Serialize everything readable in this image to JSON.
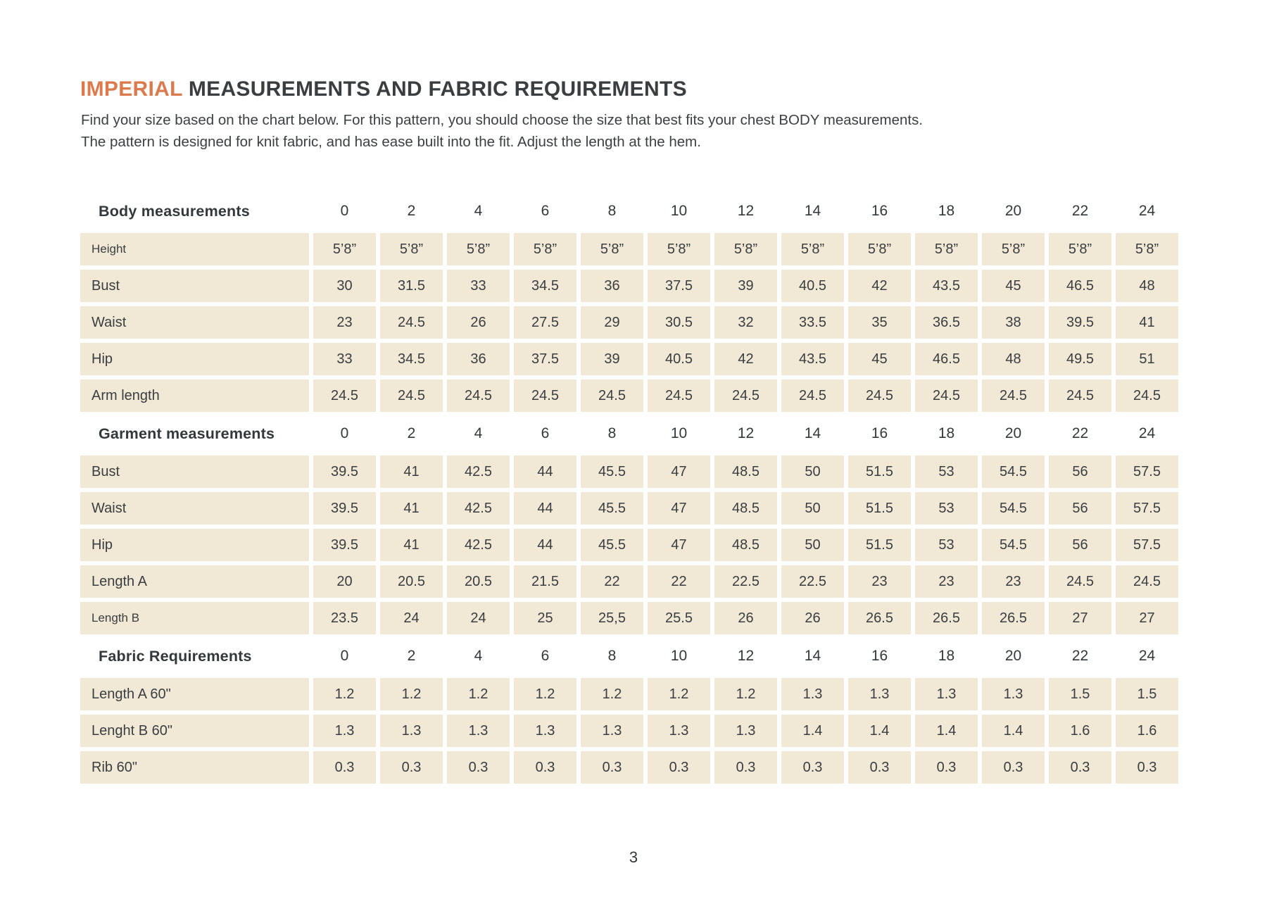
{
  "header": {
    "title_accent": "IMPERIAL",
    "title_rest": " MEASUREMENTS AND FABRIC REQUIREMENTS",
    "intro_line1": "Find your size based on the chart below. For this pattern, you should choose the size that best fits your chest BODY measurements.",
    "intro_line2": "The pattern is designed for knit fabric, and has ease built into the fit. Adjust the length at the hem."
  },
  "colors": {
    "accent": "#db7a4c",
    "text": "#3a3e41",
    "cell_background": "#f2e8d6"
  },
  "sizes": [
    "0",
    "2",
    "4",
    "6",
    "8",
    "10",
    "12",
    "14",
    "16",
    "18",
    "20",
    "22",
    "24"
  ],
  "sections": [
    {
      "header": "Body measurements",
      "rows": [
        {
          "label": "Height",
          "small": true,
          "values": [
            "5’8”",
            "5’8”",
            "5’8”",
            "5’8”",
            "5’8”",
            "5’8”",
            "5’8”",
            "5’8”",
            "5’8”",
            "5’8”",
            "5’8”",
            "5’8”",
            "5’8”"
          ]
        },
        {
          "label": "Bust",
          "small": false,
          "values": [
            "30",
            "31.5",
            "33",
            "34.5",
            "36",
            "37.5",
            "39",
            "40.5",
            "42",
            "43.5",
            "45",
            "46.5",
            "48"
          ]
        },
        {
          "label": "Waist",
          "small": false,
          "values": [
            "23",
            "24.5",
            "26",
            "27.5",
            "29",
            "30.5",
            "32",
            "33.5",
            "35",
            "36.5",
            "38",
            "39.5",
            "41"
          ]
        },
        {
          "label": "Hip",
          "small": false,
          "values": [
            "33",
            "34.5",
            "36",
            "37.5",
            "39",
            "40.5",
            "42",
            "43.5",
            "45",
            "46.5",
            "48",
            "49.5",
            "51"
          ]
        },
        {
          "label": "Arm length",
          "small": false,
          "values": [
            "24.5",
            "24.5",
            "24.5",
            "24.5",
            "24.5",
            "24.5",
            "24.5",
            "24.5",
            "24.5",
            "24.5",
            "24.5",
            "24.5",
            "24.5"
          ]
        }
      ]
    },
    {
      "header": "Garment measurements",
      "rows": [
        {
          "label": "Bust",
          "small": false,
          "values": [
            "39.5",
            "41",
            "42.5",
            "44",
            "45.5",
            "47",
            "48.5",
            "50",
            "51.5",
            "53",
            "54.5",
            "56",
            "57.5"
          ]
        },
        {
          "label": "Waist",
          "small": false,
          "values": [
            "39.5",
            "41",
            "42.5",
            "44",
            "45.5",
            "47",
            "48.5",
            "50",
            "51.5",
            "53",
            "54.5",
            "56",
            "57.5"
          ]
        },
        {
          "label": "Hip",
          "small": false,
          "values": [
            "39.5",
            "41",
            "42.5",
            "44",
            "45.5",
            "47",
            "48.5",
            "50",
            "51.5",
            "53",
            "54.5",
            "56",
            "57.5"
          ]
        },
        {
          "label": "Length A",
          "small": false,
          "values": [
            "20",
            "20.5",
            "20.5",
            "21.5",
            "22",
            "22",
            "22.5",
            "22.5",
            "23",
            "23",
            "23",
            "24.5",
            "24.5"
          ]
        },
        {
          "label": "Length B",
          "small": true,
          "values": [
            "23.5",
            "24",
            "24",
            "25",
            "25,5",
            "25.5",
            "26",
            "26",
            "26.5",
            "26.5",
            "26.5",
            "27",
            "27"
          ]
        }
      ]
    },
    {
      "header": "Fabric Requirements",
      "rows": [
        {
          "label": "Length A 60\"",
          "small": false,
          "values": [
            "1.2",
            "1.2",
            "1.2",
            "1.2",
            "1.2",
            "1.2",
            "1.2",
            "1.3",
            "1.3",
            "1.3",
            "1.3",
            "1.5",
            "1.5"
          ]
        },
        {
          "label": "Lenght B 60\"",
          "small": false,
          "values": [
            "1.3",
            "1.3",
            "1.3",
            "1.3",
            "1.3",
            "1.3",
            "1.3",
            "1.4",
            "1.4",
            "1.4",
            "1.4",
            "1.6",
            "1.6"
          ]
        },
        {
          "label": "Rib 60\"",
          "small": false,
          "values": [
            "0.3",
            "0.3",
            "0.3",
            "0.3",
            "0.3",
            "0.3",
            "0.3",
            "0.3",
            "0.3",
            "0.3",
            "0.3",
            "0.3",
            "0.3"
          ]
        }
      ]
    }
  ],
  "footer": {
    "page_number": "3"
  }
}
